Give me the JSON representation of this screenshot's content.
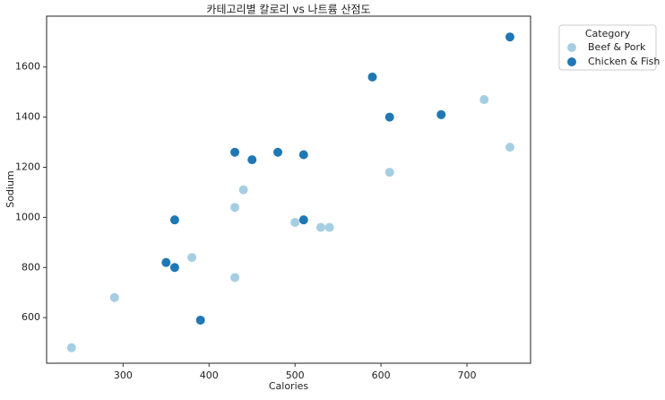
{
  "chart_data": {
    "type": "scatter",
    "title": "카테고리별 칼로리 vs 나트륨 산점도",
    "x_label": "Calories",
    "y_label": "Sodium",
    "legend_title": "Category",
    "legend_position": "outside-upper-right",
    "xlim": [
      211,
      774
    ],
    "ylim": [
      418,
      1803
    ],
    "xticks": [
      300,
      400,
      500,
      600,
      700
    ],
    "yticks": [
      600,
      800,
      1000,
      1200,
      1400,
      1600
    ],
    "series": [
      {
        "name": "Beef & Pork",
        "color": "#a6cee3",
        "x": [
          240,
          290,
          380,
          430,
          430,
          440,
          500,
          530,
          540,
          610,
          720,
          750
        ],
        "values": [
          480,
          680,
          840,
          760,
          1040,
          1110,
          980,
          960,
          960,
          1180,
          1470,
          1280
        ]
      },
      {
        "name": "Chicken & Fish",
        "color": "#1f78b4",
        "x": [
          350,
          360,
          360,
          390,
          430,
          450,
          480,
          510,
          510,
          590,
          610,
          670,
          750
        ],
        "values": [
          820,
          800,
          990,
          590,
          1260,
          1230,
          1260,
          1250,
          990,
          1560,
          1400,
          1410,
          1720
        ]
      }
    ]
  }
}
